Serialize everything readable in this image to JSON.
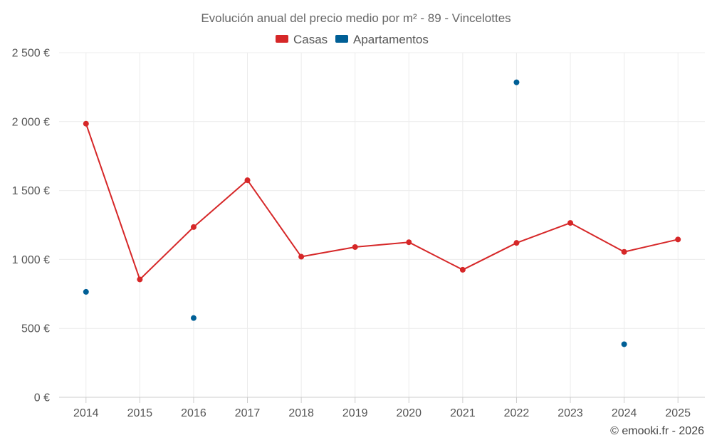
{
  "chart_data": {
    "type": "line",
    "title": "Evolución anual del precio medio por m² - 89 - Vincelottes",
    "categories": [
      "2014",
      "2015",
      "2016",
      "2017",
      "2018",
      "2019",
      "2020",
      "2021",
      "2022",
      "2023",
      "2024",
      "2025"
    ],
    "series": [
      {
        "name": "Casas",
        "color": "#d62728",
        "style": "line-markers",
        "values": [
          1985,
          855,
          1235,
          1575,
          1020,
          1090,
          1125,
          925,
          1120,
          1265,
          1055,
          1145
        ]
      },
      {
        "name": "Apartamentos",
        "color": "#005f96",
        "style": "markers",
        "values": [
          765,
          null,
          575,
          null,
          null,
          null,
          null,
          null,
          2285,
          null,
          385,
          null
        ]
      }
    ],
    "y_ticks": [
      0,
      500,
      1000,
      1500,
      2000,
      2500
    ],
    "y_tick_labels": [
      "0 €",
      "500 €",
      "1 000 €",
      "1 500 €",
      "2 000 €",
      "2 500 €"
    ],
    "ylim": [
      0,
      2500
    ],
    "xlabel": "",
    "ylabel": "",
    "legend_position": "top-center",
    "grid": true
  },
  "credit": "© emooki.fr - 2026"
}
